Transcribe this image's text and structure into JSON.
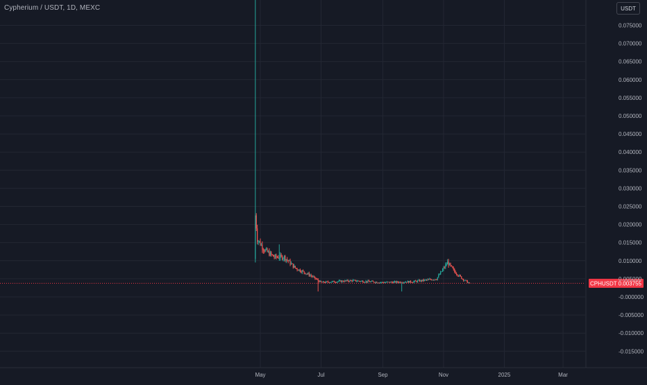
{
  "header": {
    "title": "Cypherium / USDT, 1D, MEXC"
  },
  "unit_button": {
    "label": "USDT"
  },
  "last_price_tag": {
    "symbol": "CPHUSDT",
    "price": "0.003755"
  },
  "colors": {
    "background": "#161a25",
    "grid": "#232733",
    "up": "#26a69a",
    "down": "#ef5350",
    "text": "#b2b5be",
    "price_tag": "#f23645"
  },
  "chart_data": {
    "type": "candlestick",
    "title": "Cypherium / USDT, 1D, MEXC",
    "xlabel": "",
    "ylabel": "",
    "ylim": [
      -0.0195,
      0.0825
    ],
    "x_ticks": [
      "May",
      "Jul",
      "Sep",
      "Nov",
      "2025",
      "Mar"
    ],
    "y_ticks": [
      "0.075000",
      "0.070000",
      "0.065000",
      "0.060000",
      "0.055000",
      "0.050000",
      "0.045000",
      "0.040000",
      "0.035000",
      "0.030000",
      "0.025000",
      "0.020000",
      "0.015000",
      "0.010000",
      "0.005000",
      "-0.000000",
      "-0.005000",
      "-0.010000",
      "-0.015000"
    ],
    "last_price": 0.003755,
    "grid": true,
    "series": [
      {
        "approximate_close_path": [
          {
            "x": "2024-04-26",
            "y": 0.023
          },
          {
            "x": "2024-04-28",
            "y": 0.016
          },
          {
            "x": "2024-05-05",
            "y": 0.013
          },
          {
            "x": "2024-05-15",
            "y": 0.011
          },
          {
            "x": "2024-05-25",
            "y": 0.011
          },
          {
            "x": "2024-06-05",
            "y": 0.008
          },
          {
            "x": "2024-06-20",
            "y": 0.006
          },
          {
            "x": "2024-07-01",
            "y": 0.004
          },
          {
            "x": "2024-08-01",
            "y": 0.0045
          },
          {
            "x": "2024-09-01",
            "y": 0.004
          },
          {
            "x": "2024-10-01",
            "y": 0.0042
          },
          {
            "x": "2024-10-25",
            "y": 0.005
          },
          {
            "x": "2024-11-05",
            "y": 0.0095
          },
          {
            "x": "2024-11-12",
            "y": 0.007
          },
          {
            "x": "2024-11-20",
            "y": 0.005
          },
          {
            "x": "2024-11-27",
            "y": 0.003755
          }
        ],
        "key_highs": [
          {
            "x": "2024-04-26",
            "y": 0.0825
          },
          {
            "x": "2024-05-20",
            "y": 0.0145
          },
          {
            "x": "2024-11-06",
            "y": 0.0105
          }
        ],
        "key_lows": [
          {
            "x": "2024-04-26",
            "y": 0.0095
          },
          {
            "x": "2024-06-28",
            "y": 0.0015
          },
          {
            "x": "2024-09-20",
            "y": 0.0015
          }
        ]
      }
    ]
  }
}
